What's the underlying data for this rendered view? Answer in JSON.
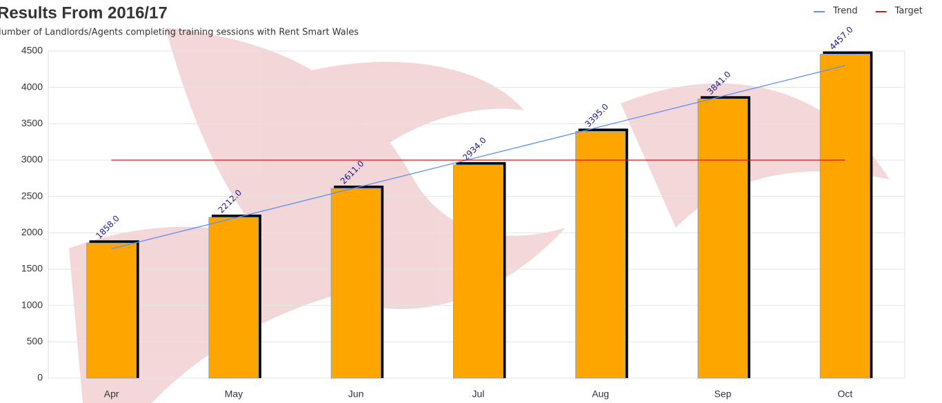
{
  "chart_data": {
    "type": "bar",
    "title": "Results From 2016/17",
    "subtitle": "Number of Landlords/Agents completing training sessions with Rent Smart Wales",
    "categories": [
      "Apr",
      "May",
      "Jun",
      "Jul",
      "Aug",
      "Sep",
      "Oct"
    ],
    "values": [
      1858,
      2212,
      2611,
      2934,
      3395,
      3841,
      4457
    ],
    "value_labels": [
      "1858.0",
      "2212.0",
      "2611.0",
      "2934.0",
      "3395.0",
      "3841.0",
      "4457.0"
    ],
    "color": "#ffa500",
    "series": [
      {
        "name": "Trend",
        "color": "#5b8ff9",
        "values": [
          1780,
          2200,
          2620,
          3040,
          3460,
          3880,
          4300
        ]
      },
      {
        "name": "Target",
        "color": "#e01010",
        "values": [
          3000,
          3000,
          3000,
          3000,
          3000,
          3000,
          3000
        ]
      }
    ],
    "ylim": [
      0,
      4500
    ],
    "yticks": [
      0,
      500,
      1000,
      1500,
      2000,
      2500,
      3000,
      3500,
      4000,
      4500
    ],
    "grid": true
  }
}
